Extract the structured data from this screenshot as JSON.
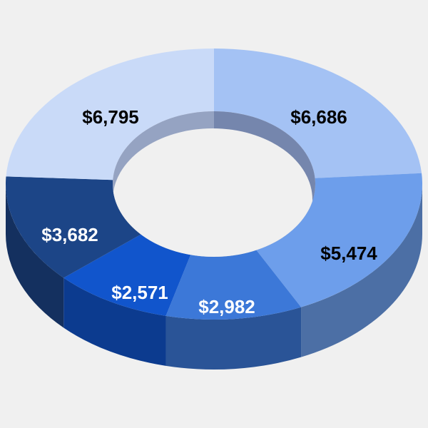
{
  "chart_data": {
    "type": "pie",
    "variant": "3d-donut",
    "title": "",
    "legend": "none",
    "slices": [
      {
        "label": "$6,686",
        "value": 6686,
        "color": "#a4c2f4",
        "label_color": "#000000"
      },
      {
        "label": "$5,474",
        "value": 5474,
        "color": "#6d9eeb",
        "label_color": "#000000"
      },
      {
        "label": "$2,982",
        "value": 2982,
        "color": "#3c78d8",
        "label_color": "#ffffff"
      },
      {
        "label": "$2,571",
        "value": 2571,
        "color": "#1155cc",
        "label_color": "#ffffff"
      },
      {
        "label": "$3,682",
        "value": 3682,
        "color": "#1c4587",
        "label_color": "#ffffff"
      },
      {
        "label": "$6,795",
        "value": 6795,
        "color": "#c9daf8",
        "label_color": "#000000"
      }
    ]
  }
}
